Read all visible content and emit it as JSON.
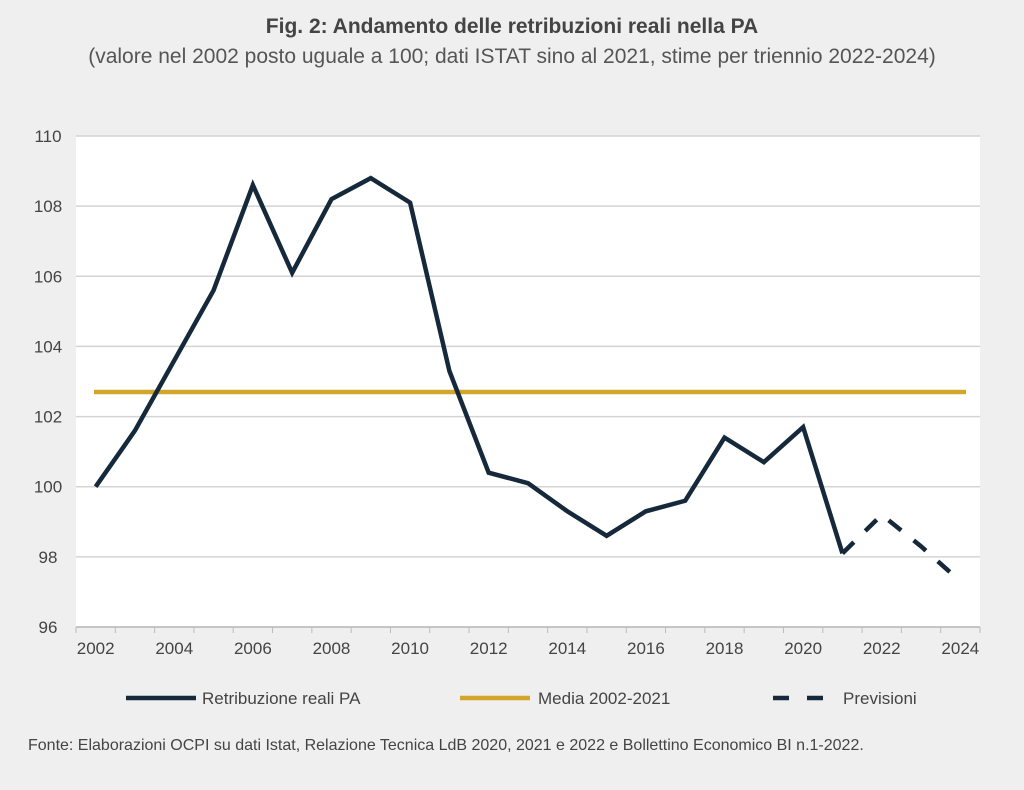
{
  "chart_data": {
    "type": "line",
    "title": "Fig. 2: Andamento delle retribuzioni reali nella PA",
    "subtitle": "(valore nel 2002 posto uguale a 100; dati ISTAT sino al 2021, stime per triennio 2022-2024)",
    "x": [
      2002,
      2003,
      2004,
      2005,
      2006,
      2007,
      2008,
      2009,
      2010,
      2011,
      2012,
      2013,
      2014,
      2015,
      2016,
      2017,
      2018,
      2019,
      2020,
      2021,
      2022,
      2023,
      2024
    ],
    "x_tick_labels": [
      "2002",
      "2004",
      "2006",
      "2008",
      "2010",
      "2012",
      "2014",
      "2016",
      "2018",
      "2020",
      "2022",
      "2024"
    ],
    "y_tick_labels": [
      "96",
      "98",
      "100",
      "102",
      "104",
      "106",
      "108",
      "110"
    ],
    "ylim": [
      96,
      110
    ],
    "grid": true,
    "legend_position": "bottom",
    "series": [
      {
        "name": "Retribuzione reali PA",
        "color": "#15293b",
        "style": "solid",
        "values": [
          100,
          101.6,
          103.6,
          105.6,
          108.6,
          106.1,
          108.2,
          108.8,
          108.1,
          103.3,
          100.4,
          100.1,
          99.3,
          98.6,
          99.3,
          99.6,
          101.4,
          100.7,
          101.7,
          98.1,
          null,
          null,
          null
        ]
      },
      {
        "name": "Media 2002-2021",
        "color": "#d2a52b",
        "style": "solid",
        "values": [
          102.7,
          102.7,
          102.7,
          102.7,
          102.7,
          102.7,
          102.7,
          102.7,
          102.7,
          102.7,
          102.7,
          102.7,
          102.7,
          102.7,
          102.7,
          102.7,
          102.7,
          102.7,
          102.7,
          102.7,
          102.7,
          102.7,
          102.7
        ]
      },
      {
        "name": "Previsioni",
        "color": "#15293b",
        "style": "dashed",
        "values": [
          null,
          null,
          null,
          null,
          null,
          null,
          null,
          null,
          null,
          null,
          null,
          null,
          null,
          null,
          null,
          null,
          null,
          null,
          null,
          98.1,
          99.2,
          98.3,
          97.3
        ]
      }
    ]
  },
  "source": "Fonte: Elaborazioni OCPI su dati Istat, Relazione Tecnica LdB 2020, 2021 e 2022 e Bollettino Economico BI n.1-2022."
}
